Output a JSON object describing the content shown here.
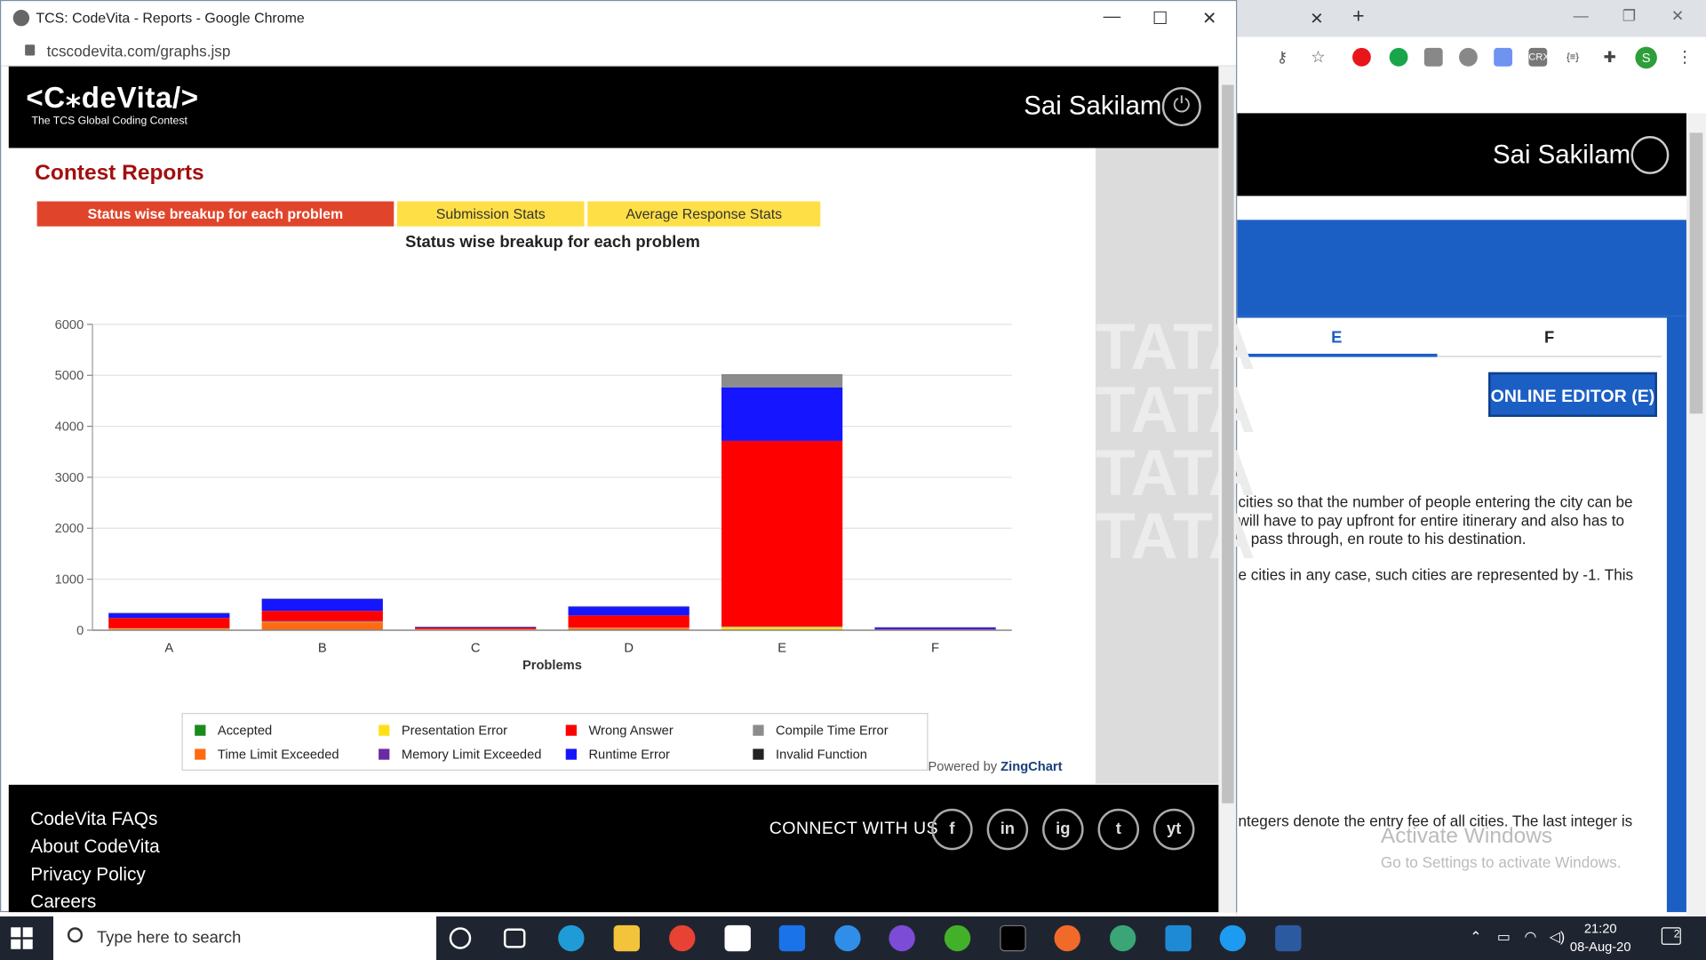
{
  "window": {
    "title": "TCS: CodeVita - Reports - Google Chrome",
    "url": "tcscodevita.com/graphs.jsp",
    "controls": {
      "minimize": "—",
      "maximize": "☐",
      "close": "✕"
    }
  },
  "header": {
    "logo_text": "<C⁎deVita/>",
    "logo_tagline": "The TCS Global Coding Contest",
    "user_name": "Sai Sakilam"
  },
  "page": {
    "title": "Contest Reports",
    "tabs": [
      "Status wise breakup for each problem",
      "Submission Stats",
      "Average Response Stats"
    ],
    "active_tab": 0,
    "watermark": "TATA"
  },
  "chart_data": {
    "type": "bar",
    "stacked": true,
    "title": "Status wise breakup for each problem",
    "xlabel": "Problems",
    "ylabel": "",
    "ylim": [
      0,
      6000
    ],
    "yticks": [
      0,
      1000,
      2000,
      3000,
      4000,
      5000,
      6000
    ],
    "categories": [
      "A",
      "B",
      "C",
      "D",
      "E",
      "F"
    ],
    "series": [
      {
        "name": "Accepted",
        "color": "#1a8a1a",
        "values": [
          5,
          5,
          2,
          5,
          5,
          2
        ]
      },
      {
        "name": "Time Limit Exceeded",
        "color": "#ff6a13",
        "values": [
          20,
          150,
          10,
          30,
          10,
          2
        ]
      },
      {
        "name": "Presentation Error",
        "color": "#ffe018",
        "values": [
          10,
          10,
          5,
          10,
          50,
          2
        ]
      },
      {
        "name": "Memory Limit Exceeded",
        "color": "#6b2aa3",
        "values": [
          5,
          15,
          5,
          5,
          10,
          10
        ]
      },
      {
        "name": "Wrong Answer",
        "color": "#ff0000",
        "values": [
          200,
          200,
          30,
          240,
          3640,
          8
        ]
      },
      {
        "name": "Runtime Error",
        "color": "#1515ff",
        "values": [
          90,
          230,
          10,
          170,
          1050,
          30
        ]
      },
      {
        "name": "Compile Time Error",
        "color": "#8c8c8c",
        "values": [
          10,
          10,
          5,
          10,
          250,
          5
        ]
      },
      {
        "name": "Invalid Function",
        "color": "#222222",
        "values": [
          2,
          2,
          2,
          2,
          5,
          1
        ]
      }
    ],
    "legend_position": "bottom",
    "grid": true
  },
  "legend": {
    "row1": [
      "Accepted",
      "Presentation Error",
      "Wrong Answer",
      "Compile Time Error"
    ],
    "row2": [
      "Time Limit Exceeded",
      "Memory Limit Exceeded",
      "Runtime Error",
      "Invalid Function"
    ],
    "colors_row1": [
      "#1a8a1a",
      "#ffe018",
      "#ff0000",
      "#8c8c8c"
    ],
    "colors_row2": [
      "#ff6a13",
      "#6b2aa3",
      "#1515ff",
      "#222222"
    ]
  },
  "powered": {
    "prefix": "Powered by ",
    "brand": "ZingChart"
  },
  "footer": {
    "links": [
      "CodeVita FAQs",
      "About CodeVita",
      "Privacy Policy",
      "Careers"
    ],
    "connect": "CONNECT WITH US",
    "social": [
      "f",
      "in",
      "ig",
      "t",
      "yt"
    ]
  },
  "background_page": {
    "user_name": "Sai Sakilam",
    "tabs": [
      "E",
      "F"
    ],
    "editor_button": "ONLINE EDITOR (E)",
    "text_lines": [
      "cities so that the number of people entering the city can be",
      "will have to pay upfront for entire itinerary and also has to",
      "o pass through, en route to his destination.",
      "e cities in any case, such cities are represented by -1. This",
      "ntegers denote the entry fee of all cities. The last integer is"
    ],
    "activate_title": "Activate Windows",
    "activate_sub": "Go to Settings to activate Windows."
  },
  "taskbar": {
    "search_placeholder": "Type here to search",
    "time": "21:20",
    "date": "08-Aug-20",
    "notifications": "2"
  }
}
